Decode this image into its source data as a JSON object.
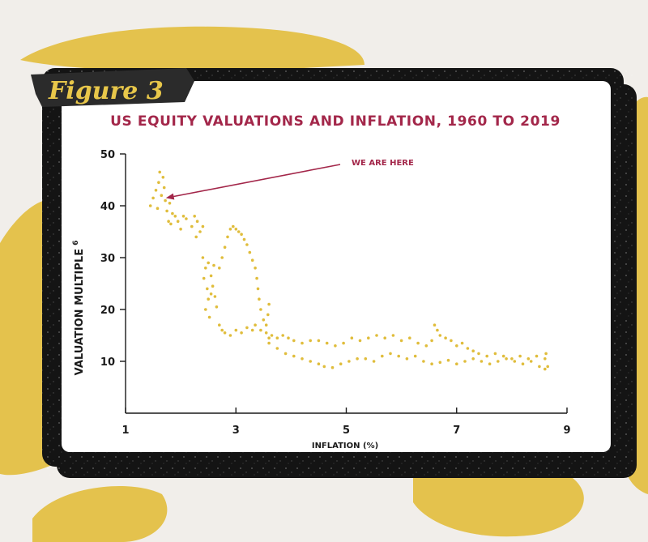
{
  "figure_tag": "Figure 3",
  "colors": {
    "page_bg": "#f1eeea",
    "blob": "#e4c24d",
    "frame": "#141414",
    "card": "#ffffff",
    "title": "#a3274a",
    "points": "#e0bd3c",
    "axis": "#1a1a1a"
  },
  "chart_data": {
    "type": "scatter",
    "title": "US EQUITY VALUATIONS AND INFLATION, 1960 TO 2019",
    "xlabel": "INFLATION (%)",
    "ylabel": "VALUATION MULTIPLE",
    "ylabel_superscript": "6",
    "xlim": [
      1,
      9
    ],
    "ylim": [
      0,
      50
    ],
    "xticks": [
      1,
      3,
      5,
      7,
      9
    ],
    "yticks": [
      10,
      20,
      30,
      40,
      50
    ],
    "grid": false,
    "annotation": {
      "text": "WE ARE HERE",
      "x": 1.7,
      "y": 41.5
    },
    "series": [
      {
        "points": [
          [
            1.45,
            40.0
          ],
          [
            1.5,
            41.5
          ],
          [
            1.55,
            43.0
          ],
          [
            1.6,
            44.5
          ],
          [
            1.62,
            46.5
          ],
          [
            1.58,
            39.5
          ],
          [
            1.65,
            42.0
          ],
          [
            1.68,
            45.5
          ],
          [
            1.7,
            43.5
          ],
          [
            1.72,
            41.0
          ],
          [
            1.75,
            39.0
          ],
          [
            1.8,
            40.5
          ],
          [
            1.85,
            38.5
          ],
          [
            1.78,
            37.0
          ],
          [
            1.82,
            36.5
          ],
          [
            1.9,
            38.0
          ],
          [
            1.95,
            37.0
          ],
          [
            2.0,
            35.5
          ],
          [
            2.05,
            38.0
          ],
          [
            2.1,
            37.5
          ],
          [
            2.2,
            36.0
          ],
          [
            2.25,
            38.0
          ],
          [
            2.3,
            37.0
          ],
          [
            2.35,
            35.0
          ],
          [
            2.28,
            34.0
          ],
          [
            2.4,
            36.0
          ],
          [
            2.4,
            30.0
          ],
          [
            2.45,
            28.0
          ],
          [
            2.42,
            26.0
          ],
          [
            2.48,
            24.0
          ],
          [
            2.5,
            22.0
          ],
          [
            2.45,
            20.0
          ],
          [
            2.52,
            18.5
          ],
          [
            2.55,
            26.5
          ],
          [
            2.58,
            24.5
          ],
          [
            2.6,
            28.5
          ],
          [
            2.62,
            22.5
          ],
          [
            2.65,
            20.5
          ],
          [
            2.5,
            29.0
          ],
          [
            2.55,
            23.0
          ],
          [
            2.7,
            28.0
          ],
          [
            2.75,
            30.0
          ],
          [
            2.8,
            32.0
          ],
          [
            2.85,
            34.0
          ],
          [
            2.9,
            35.5
          ],
          [
            2.95,
            36.0
          ],
          [
            3.0,
            35.5
          ],
          [
            3.05,
            35.0
          ],
          [
            3.1,
            34.5
          ],
          [
            3.15,
            33.5
          ],
          [
            3.2,
            32.5
          ],
          [
            3.25,
            31.0
          ],
          [
            3.3,
            29.5
          ],
          [
            3.35,
            28.0
          ],
          [
            3.38,
            26.0
          ],
          [
            3.4,
            24.0
          ],
          [
            3.42,
            22.0
          ],
          [
            3.45,
            20.0
          ],
          [
            3.5,
            18.0
          ],
          [
            3.55,
            17.0
          ],
          [
            3.58,
            19.0
          ],
          [
            3.6,
            21.0
          ],
          [
            2.7,
            17.0
          ],
          [
            2.75,
            16.0
          ],
          [
            2.8,
            15.5
          ],
          [
            2.9,
            15.0
          ],
          [
            3.0,
            16.0
          ],
          [
            3.1,
            15.5
          ],
          [
            3.2,
            16.5
          ],
          [
            3.3,
            16.0
          ],
          [
            3.35,
            17.0
          ],
          [
            3.45,
            16.0
          ],
          [
            3.55,
            15.5
          ],
          [
            3.6,
            14.5
          ],
          [
            3.65,
            15.0
          ],
          [
            3.75,
            14.5
          ],
          [
            3.85,
            15.0
          ],
          [
            3.95,
            14.5
          ],
          [
            4.05,
            14.0
          ],
          [
            4.2,
            13.5
          ],
          [
            4.35,
            14.0
          ],
          [
            4.5,
            14.0
          ],
          [
            4.65,
            13.5
          ],
          [
            4.8,
            13.0
          ],
          [
            4.95,
            13.5
          ],
          [
            5.1,
            14.5
          ],
          [
            5.25,
            14.0
          ],
          [
            5.4,
            14.5
          ],
          [
            5.55,
            15.0
          ],
          [
            5.7,
            14.5
          ],
          [
            5.85,
            15.0
          ],
          [
            6.0,
            14.0
          ],
          [
            6.15,
            14.5
          ],
          [
            6.3,
            13.5
          ],
          [
            6.45,
            13.0
          ],
          [
            6.55,
            14.0
          ],
          [
            6.6,
            17.0
          ],
          [
            6.65,
            16.0
          ],
          [
            6.7,
            15.0
          ],
          [
            6.8,
            14.5
          ],
          [
            6.9,
            14.0
          ],
          [
            7.0,
            13.0
          ],
          [
            7.1,
            13.5
          ],
          [
            7.2,
            12.5
          ],
          [
            7.3,
            12.0
          ],
          [
            7.4,
            11.5
          ],
          [
            7.55,
            11.0
          ],
          [
            7.7,
            11.5
          ],
          [
            7.85,
            11.0
          ],
          [
            8.0,
            10.5
          ],
          [
            8.15,
            11.0
          ],
          [
            8.3,
            10.5
          ],
          [
            8.45,
            11.0
          ],
          [
            8.6,
            10.5
          ],
          [
            8.65,
            9.0
          ],
          [
            8.62,
            11.5
          ],
          [
            3.6,
            13.5
          ],
          [
            3.75,
            12.5
          ],
          [
            3.9,
            11.5
          ],
          [
            4.05,
            11.0
          ],
          [
            4.2,
            10.5
          ],
          [
            4.35,
            10.0
          ],
          [
            4.5,
            9.5
          ],
          [
            4.6,
            9.0
          ],
          [
            4.75,
            8.8
          ],
          [
            4.9,
            9.5
          ],
          [
            5.05,
            10.0
          ],
          [
            5.2,
            10.5
          ],
          [
            5.35,
            10.5
          ],
          [
            5.5,
            10.0
          ],
          [
            5.65,
            11.0
          ],
          [
            5.8,
            11.5
          ],
          [
            5.95,
            11.0
          ],
          [
            6.1,
            10.5
          ],
          [
            6.25,
            11.0
          ],
          [
            6.4,
            10.0
          ],
          [
            6.55,
            9.5
          ],
          [
            6.7,
            9.8
          ],
          [
            6.85,
            10.2
          ],
          [
            7.0,
            9.5
          ],
          [
            7.15,
            10.0
          ],
          [
            7.3,
            10.5
          ],
          [
            7.45,
            10.0
          ],
          [
            7.6,
            9.5
          ],
          [
            7.75,
            10.0
          ],
          [
            7.9,
            10.5
          ],
          [
            8.05,
            10.0
          ],
          [
            8.2,
            9.5
          ],
          [
            8.35,
            10.0
          ],
          [
            8.5,
            9.0
          ],
          [
            8.6,
            8.5
          ]
        ]
      }
    ]
  }
}
